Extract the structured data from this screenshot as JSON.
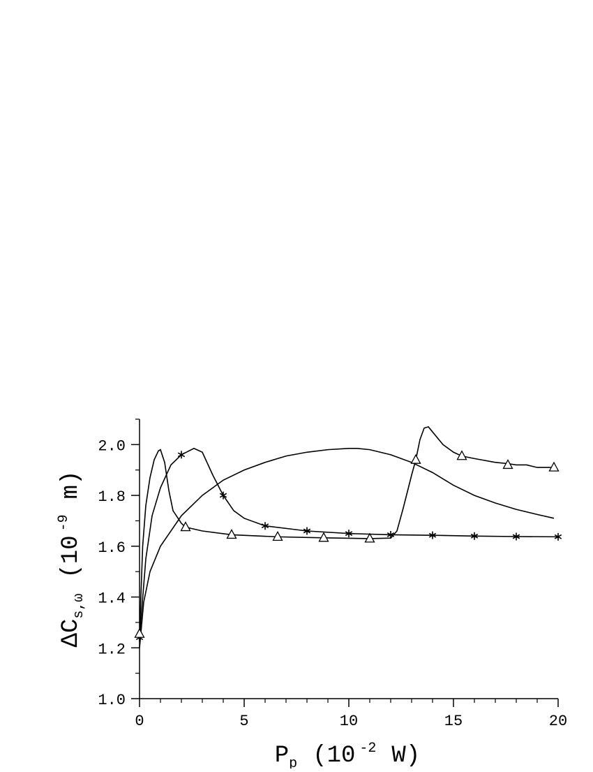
{
  "chart_data": {
    "type": "line",
    "xlabel": [
      "P",
      "p",
      "(10",
      "-2",
      "W)"
    ],
    "ylabel": [
      "ΔC",
      "s,ω",
      "(10",
      "-9",
      "m)"
    ],
    "xlim": [
      0,
      20
    ],
    "ylim": [
      1.0,
      2.1
    ],
    "xticks": [
      0,
      5,
      10,
      15,
      20
    ],
    "xminorticks": [
      1,
      2,
      3,
      4,
      6,
      7,
      8,
      9,
      11,
      12,
      13,
      14,
      16,
      17,
      18,
      19
    ],
    "yticks": [
      {
        "value": 1.0,
        "label": "1.0"
      },
      {
        "value": 1.2,
        "label": "1.2"
      },
      {
        "value": 1.4,
        "label": "1.4"
      },
      {
        "value": 1.6,
        "label": "1.6"
      },
      {
        "value": 1.8,
        "label": "1.8"
      },
      {
        "value": 2.0,
        "label": "2.0"
      }
    ],
    "yminorticks": [
      1.1,
      1.3,
      1.5,
      1.7,
      1.9,
      2.1
    ],
    "series": [
      {
        "color": "#000000",
        "marker": "none",
        "x": [
          0,
          0.2,
          0.5,
          1,
          2,
          3,
          4,
          5,
          6,
          7,
          8,
          9,
          10,
          10.4,
          11,
          12,
          13,
          14,
          15,
          16,
          17,
          18,
          19,
          19.8
        ],
        "values": [
          1.2,
          1.38,
          1.5,
          1.6,
          1.72,
          1.8,
          1.86,
          1.9,
          1.93,
          1.955,
          1.97,
          1.98,
          1.985,
          1.985,
          1.98,
          1.96,
          1.93,
          1.89,
          1.84,
          1.8,
          1.77,
          1.745,
          1.725,
          1.71
        ]
      },
      {
        "color": "#000000",
        "marker": "star",
        "x": [
          0,
          0.3,
          0.6,
          1,
          1.5,
          2,
          2.6,
          3,
          3.5,
          4,
          4.5,
          5,
          6,
          8,
          10,
          12,
          14,
          16,
          18,
          20
        ],
        "values": [
          1.24,
          1.55,
          1.72,
          1.83,
          1.92,
          1.96,
          1.985,
          1.97,
          1.88,
          1.8,
          1.74,
          1.71,
          1.68,
          1.66,
          1.65,
          1.645,
          1.643,
          1.64,
          1.638,
          1.637
        ],
        "markers": {
          "x": [
            0,
            2,
            4,
            6,
            8,
            10,
            12,
            14,
            16,
            18,
            20
          ],
          "values": [
            1.24,
            1.96,
            1.8,
            1.68,
            1.66,
            1.65,
            1.645,
            1.643,
            1.64,
            1.638,
            1.637
          ]
        }
      },
      {
        "color": "#000000",
        "marker": "triangle",
        "x": [
          0,
          0.15,
          0.3,
          0.5,
          0.7,
          0.9,
          1.0,
          1.2,
          1.4,
          1.6,
          2,
          2.2,
          3,
          4.4,
          6.6,
          8.8,
          11,
          12,
          12.3,
          12.6,
          13,
          13.2,
          13.4,
          13.6,
          13.8,
          14,
          14.5,
          15,
          15.4,
          16,
          17,
          17.6,
          18,
          18.5,
          19,
          19.5,
          19.8
        ],
        "values": [
          1.25,
          1.6,
          1.76,
          1.87,
          1.94,
          1.975,
          1.98,
          1.93,
          1.82,
          1.74,
          1.69,
          1.675,
          1.66,
          1.645,
          1.637,
          1.633,
          1.63,
          1.632,
          1.66,
          1.75,
          1.88,
          1.94,
          2.02,
          2.065,
          2.07,
          2.05,
          2.0,
          1.97,
          1.955,
          1.945,
          1.93,
          1.925,
          1.92,
          1.92,
          1.91,
          1.91,
          1.91
        ],
        "markers": {
          "x": [
            0,
            2.2,
            4.4,
            6.6,
            8.8,
            11,
            13.2,
            15.4,
            17.6,
            19.8
          ],
          "values": [
            1.255,
            1.675,
            1.645,
            1.637,
            1.633,
            1.63,
            1.94,
            1.955,
            1.92,
            1.91
          ]
        }
      }
    ]
  }
}
